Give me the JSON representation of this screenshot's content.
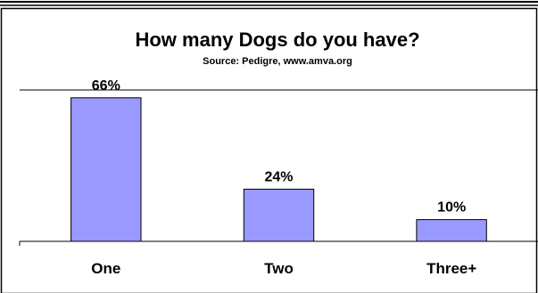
{
  "chart_data": {
    "type": "bar",
    "title": "How many Dogs do you have?",
    "subtitle": "Source: Pedigre, www.amva.org",
    "categories": [
      "One",
      "Two",
      "Three+"
    ],
    "values": [
      66,
      24,
      10
    ],
    "data_labels": [
      "66%",
      "24%",
      "10%"
    ],
    "ylim": [
      0,
      70
    ],
    "grid": false,
    "legend": "none",
    "bar_color": "#9999ff"
  }
}
